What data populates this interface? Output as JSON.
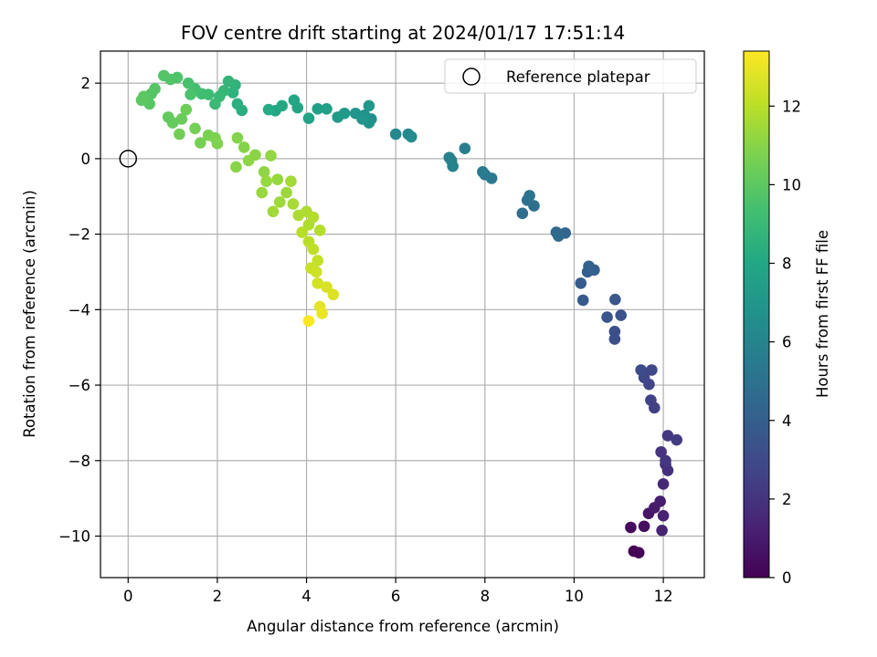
{
  "chart_data": {
    "type": "scatter",
    "title": "FOV centre drift starting at 2024/01/17 17:51:14",
    "xlabel": "Angular distance from reference (arcmin)",
    "ylabel": "Rotation from reference (arcmin)",
    "xlim": [
      -0.62,
      12.92
    ],
    "ylim": [
      -11.1,
      2.85
    ],
    "xticks": [
      0,
      2,
      4,
      6,
      8,
      10,
      12
    ],
    "yticks": [
      -10,
      -8,
      -6,
      -4,
      -2,
      0,
      2
    ],
    "xtick_labels": [
      "0",
      "2",
      "4",
      "6",
      "8",
      "10",
      "12"
    ],
    "ytick_labels": [
      "−10",
      "−8",
      "−6",
      "−4",
      "−2",
      "0",
      "2"
    ],
    "grid": true,
    "legend": {
      "placement": "top-right",
      "entries": [
        {
          "label": "Reference platepar",
          "marker": "open-circle"
        }
      ]
    },
    "reference_point": {
      "x": 0,
      "y": 0
    },
    "colorbar": {
      "label": "Hours from first FF file",
      "range": [
        0,
        13.4
      ],
      "ticks": [
        0,
        2,
        4,
        6,
        8,
        10,
        12
      ],
      "tick_labels": [
        "0",
        "2",
        "4",
        "6",
        "8",
        "10",
        "12"
      ],
      "colormap": "viridis"
    },
    "track": [
      [
        11.34,
        -10.4,
        0.0
      ],
      [
        11.45,
        -10.44,
        0.15
      ],
      [
        11.27,
        -9.77,
        0.35
      ],
      [
        11.57,
        -9.74,
        0.55
      ],
      [
        11.67,
        -9.4,
        0.75
      ],
      [
        11.8,
        -9.25,
        0.95
      ],
      [
        11.93,
        -9.08,
        1.1
      ],
      [
        12.0,
        -9.46,
        1.25
      ],
      [
        11.97,
        -9.85,
        1.35
      ],
      [
        12.0,
        -8.62,
        1.5
      ],
      [
        12.05,
        -8.1,
        1.7
      ],
      [
        12.1,
        -8.26,
        1.85
      ],
      [
        11.95,
        -7.77,
        2.0
      ],
      [
        12.05,
        -8.0,
        2.1
      ],
      [
        12.1,
        -7.34,
        2.2
      ],
      [
        12.3,
        -7.45,
        2.35
      ],
      [
        11.8,
        -6.6,
        2.5
      ],
      [
        11.72,
        -6.4,
        2.6
      ],
      [
        11.68,
        -5.98,
        2.75
      ],
      [
        11.57,
        -5.8,
        2.85
      ],
      [
        11.74,
        -5.6,
        2.95
      ],
      [
        11.5,
        -5.6,
        3.05
      ],
      [
        10.91,
        -4.78,
        3.2
      ],
      [
        10.91,
        -4.58,
        3.3
      ],
      [
        11.05,
        -4.15,
        3.4
      ],
      [
        10.74,
        -4.2,
        3.5
      ],
      [
        10.92,
        -3.73,
        3.6
      ],
      [
        10.2,
        -3.75,
        3.75
      ],
      [
        10.15,
        -3.3,
        3.9
      ],
      [
        10.3,
        -3.0,
        4.0
      ],
      [
        10.45,
        -2.95,
        4.1
      ],
      [
        10.33,
        -2.85,
        4.2
      ],
      [
        9.8,
        -1.97,
        4.4
      ],
      [
        9.6,
        -1.95,
        4.5
      ],
      [
        9.65,
        -2.05,
        4.6
      ],
      [
        8.84,
        -1.45,
        4.8
      ],
      [
        9.1,
        -1.25,
        4.9
      ],
      [
        8.95,
        -1.1,
        5.0
      ],
      [
        9.0,
        -0.98,
        5.1
      ],
      [
        8.0,
        -0.42,
        5.3
      ],
      [
        8.15,
        -0.52,
        5.4
      ],
      [
        7.95,
        -0.35,
        5.5
      ],
      [
        7.55,
        0.27,
        5.7
      ],
      [
        7.25,
        -0.05,
        5.8
      ],
      [
        7.2,
        0.03,
        5.9
      ],
      [
        7.28,
        -0.2,
        6.0
      ],
      [
        6.0,
        0.65,
        6.2
      ],
      [
        6.28,
        0.65,
        6.3
      ],
      [
        6.35,
        0.58,
        6.4
      ],
      [
        5.45,
        1.05,
        6.6
      ],
      [
        5.3,
        1.15,
        6.7
      ],
      [
        5.4,
        0.95,
        6.8
      ],
      [
        5.1,
        1.2,
        6.9
      ],
      [
        5.25,
        1.05,
        7.0
      ],
      [
        5.4,
        1.4,
        7.1
      ],
      [
        4.85,
        1.2,
        7.2
      ],
      [
        4.7,
        1.1,
        7.3
      ],
      [
        4.45,
        1.32,
        7.5
      ],
      [
        4.25,
        1.32,
        7.6
      ],
      [
        4.05,
        1.07,
        7.7
      ],
      [
        3.8,
        1.35,
        7.8
      ],
      [
        3.72,
        1.55,
        7.9
      ],
      [
        3.3,
        1.27,
        8.0
      ],
      [
        3.45,
        1.4,
        8.1
      ],
      [
        3.15,
        1.3,
        8.2
      ],
      [
        2.55,
        1.28,
        8.35
      ],
      [
        2.45,
        1.45,
        8.45
      ],
      [
        2.35,
        1.75,
        8.55
      ],
      [
        2.4,
        1.95,
        8.65
      ],
      [
        2.25,
        2.05,
        8.75
      ],
      [
        2.15,
        1.8,
        8.85
      ],
      [
        2.05,
        1.65,
        8.95
      ],
      [
        1.95,
        1.45,
        9.05
      ],
      [
        1.8,
        1.7,
        9.15
      ],
      [
        1.65,
        1.72,
        9.25
      ],
      [
        1.5,
        1.85,
        9.35
      ],
      [
        1.35,
        2.0,
        9.45
      ],
      [
        1.4,
        1.7,
        9.55
      ],
      [
        1.1,
        2.15,
        9.65
      ],
      [
        0.95,
        2.1,
        9.7
      ],
      [
        0.8,
        2.2,
        9.75
      ],
      [
        0.6,
        1.85,
        9.8
      ],
      [
        0.52,
        1.72,
        9.85
      ],
      [
        0.48,
        1.45,
        9.9
      ],
      [
        0.35,
        1.65,
        9.95
      ],
      [
        0.3,
        1.55,
        10.0
      ],
      [
        0.9,
        1.1,
        10.1
      ],
      [
        1.0,
        0.95,
        10.2
      ],
      [
        1.2,
        1.05,
        10.3
      ],
      [
        1.3,
        1.3,
        10.4
      ],
      [
        1.15,
        0.65,
        10.5
      ],
      [
        1.5,
        0.8,
        10.55
      ],
      [
        1.62,
        0.42,
        10.6
      ],
      [
        1.8,
        0.62,
        10.7
      ],
      [
        1.95,
        0.55,
        10.75
      ],
      [
        2.0,
        0.4,
        10.8
      ],
      [
        2.45,
        0.55,
        10.9
      ],
      [
        2.6,
        0.3,
        10.95
      ],
      [
        2.42,
        -0.22,
        11.0
      ],
      [
        2.85,
        0.1,
        11.05
      ],
      [
        2.7,
        -0.05,
        11.1
      ],
      [
        3.05,
        -0.35,
        11.15
      ],
      [
        3.2,
        0.08,
        11.2
      ],
      [
        3.1,
        -0.6,
        11.25
      ],
      [
        3.35,
        -0.55,
        11.3
      ],
      [
        3.0,
        -0.9,
        11.35
      ],
      [
        3.55,
        -0.9,
        11.4
      ],
      [
        3.4,
        -1.15,
        11.45
      ],
      [
        3.25,
        -1.4,
        11.5
      ],
      [
        3.65,
        -0.6,
        11.55
      ],
      [
        3.7,
        -1.2,
        11.6
      ],
      [
        3.82,
        -1.5,
        11.7
      ],
      [
        4.0,
        -1.4,
        11.75
      ],
      [
        4.05,
        -1.75,
        11.8
      ],
      [
        4.15,
        -1.55,
        11.85
      ],
      [
        4.3,
        -1.9,
        11.9
      ],
      [
        3.9,
        -1.95,
        11.95
      ],
      [
        4.05,
        -2.2,
        12.0
      ],
      [
        4.15,
        -2.4,
        12.1
      ],
      [
        4.25,
        -2.7,
        12.2
      ],
      [
        4.1,
        -2.9,
        12.3
      ],
      [
        4.22,
        -3.0,
        12.4
      ],
      [
        4.25,
        -3.3,
        12.5
      ],
      [
        4.45,
        -3.4,
        12.6
      ],
      [
        4.6,
        -3.6,
        12.7
      ],
      [
        4.3,
        -3.92,
        12.85
      ],
      [
        4.35,
        -4.1,
        13.0
      ],
      [
        4.05,
        -4.3,
        13.4
      ]
    ]
  }
}
